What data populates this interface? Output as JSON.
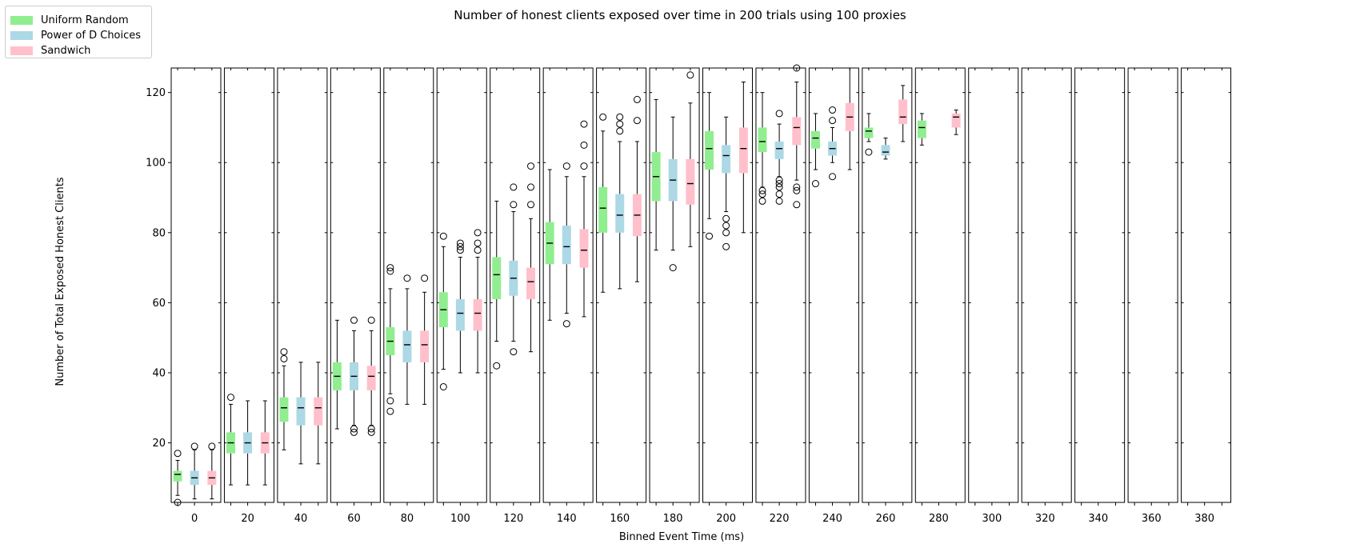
{
  "chart_data": {
    "type": "box",
    "title": "Number of honest clients exposed over time in 200 trials using 100 proxies",
    "xlabel": "Binned Event Time (ms)",
    "ylabel": "Number of Total Exposed Honest Clients",
    "ylim": [
      3,
      127
    ],
    "yticks": [
      20,
      40,
      60,
      80,
      100,
      120
    ],
    "legend_placement": "top-left",
    "categories": [
      "0",
      "20",
      "40",
      "60",
      "80",
      "100",
      "120",
      "140",
      "160",
      "180",
      "200",
      "220",
      "240",
      "260",
      "280",
      "300",
      "320",
      "340",
      "360",
      "380"
    ],
    "series": [
      {
        "name": "Uniform Random",
        "color": "#90ee90",
        "boxes": [
          {
            "whislo": 5,
            "q1": 9,
            "med": 11,
            "q3": 12,
            "whishi": 15,
            "fliers": [
              17,
              3
            ]
          },
          {
            "whislo": 8,
            "q1": 17,
            "med": 20,
            "q3": 23,
            "whishi": 31,
            "fliers": [
              33
            ]
          },
          {
            "whislo": 18,
            "q1": 26,
            "med": 30,
            "q3": 33,
            "whishi": 42,
            "fliers": [
              44,
              46
            ]
          },
          {
            "whislo": 24,
            "q1": 35,
            "med": 39,
            "q3": 43,
            "whishi": 55,
            "fliers": []
          },
          {
            "whislo": 34,
            "q1": 45,
            "med": 49,
            "q3": 53,
            "whishi": 64,
            "fliers": [
              69,
              70,
              32,
              29
            ]
          },
          {
            "whislo": 41,
            "q1": 53,
            "med": 58,
            "q3": 63,
            "whishi": 76,
            "fliers": [
              79,
              36
            ]
          },
          {
            "whislo": 49,
            "q1": 61,
            "med": 68,
            "q3": 73,
            "whishi": 89,
            "fliers": [
              42
            ]
          },
          {
            "whislo": 55,
            "q1": 71,
            "med": 77,
            "q3": 83,
            "whishi": 98,
            "fliers": []
          },
          {
            "whislo": 63,
            "q1": 80,
            "med": 87,
            "q3": 93,
            "whishi": 109,
            "fliers": [
              113
            ]
          },
          {
            "whislo": 75,
            "q1": 89,
            "med": 96,
            "q3": 103,
            "whishi": 118,
            "fliers": []
          },
          {
            "whislo": 84,
            "q1": 98,
            "med": 104,
            "q3": 109,
            "whishi": 120,
            "fliers": [
              79
            ]
          },
          {
            "whislo": 93,
            "q1": 103,
            "med": 106,
            "q3": 110,
            "whishi": 120,
            "fliers": [
              92,
              91,
              89
            ]
          },
          {
            "whislo": 98,
            "q1": 104,
            "med": 107,
            "q3": 109,
            "whishi": 114,
            "fliers": [
              94
            ]
          },
          {
            "whislo": 106,
            "q1": 107,
            "med": 109,
            "q3": 110,
            "whishi": 114,
            "fliers": [
              103
            ]
          },
          {
            "whislo": 105,
            "q1": 107,
            "med": 110,
            "q3": 112,
            "whishi": 114,
            "fliers": []
          },
          null,
          null,
          null,
          null,
          null
        ]
      },
      {
        "name": "Power of D Choices",
        "color": "#add8e6",
        "boxes": [
          {
            "whislo": 4,
            "q1": 8,
            "med": 10,
            "q3": 12,
            "whishi": 18,
            "fliers": [
              19
            ]
          },
          {
            "whislo": 8,
            "q1": 17,
            "med": 20,
            "q3": 23,
            "whishi": 32,
            "fliers": []
          },
          {
            "whislo": 14,
            "q1": 25,
            "med": 30,
            "q3": 33,
            "whishi": 43,
            "fliers": []
          },
          {
            "whislo": 25,
            "q1": 35,
            "med": 39,
            "q3": 43,
            "whishi": 52,
            "fliers": [
              55,
              24,
              23
            ]
          },
          {
            "whislo": 31,
            "q1": 43,
            "med": 48,
            "q3": 52,
            "whishi": 64,
            "fliers": [
              67
            ]
          },
          {
            "whislo": 40,
            "q1": 52,
            "med": 57,
            "q3": 61,
            "whishi": 73,
            "fliers": [
              77,
              76,
              75
            ]
          },
          {
            "whislo": 49,
            "q1": 62,
            "med": 67,
            "q3": 72,
            "whishi": 86,
            "fliers": [
              93,
              88,
              46
            ]
          },
          {
            "whislo": 57,
            "q1": 71,
            "med": 76,
            "q3": 82,
            "whishi": 96,
            "fliers": [
              99,
              54
            ]
          },
          {
            "whislo": 64,
            "q1": 80,
            "med": 85,
            "q3": 91,
            "whishi": 106,
            "fliers": [
              113,
              111,
              109
            ]
          },
          {
            "whislo": 75,
            "q1": 89,
            "med": 95,
            "q3": 101,
            "whishi": 113,
            "fliers": [
              70
            ]
          },
          {
            "whislo": 86,
            "q1": 97,
            "med": 102,
            "q3": 105,
            "whishi": 113,
            "fliers": [
              84,
              82,
              80,
              76
            ]
          },
          {
            "whislo": 96,
            "q1": 101,
            "med": 104,
            "q3": 106,
            "whishi": 111,
            "fliers": [
              114,
              95,
              94,
              93,
              91,
              89
            ]
          },
          {
            "whislo": 100,
            "q1": 102,
            "med": 104,
            "q3": 106,
            "whishi": 110,
            "fliers": [
              115,
              112,
              96
            ]
          },
          {
            "whislo": 101,
            "q1": 102,
            "med": 103,
            "q3": 105,
            "whishi": 107,
            "fliers": []
          },
          null,
          null,
          null,
          null,
          null,
          null
        ]
      },
      {
        "name": "Sandwich",
        "color": "#ffc0cb",
        "boxes": [
          {
            "whislo": 4,
            "q1": 8,
            "med": 10,
            "q3": 12,
            "whishi": 18,
            "fliers": [
              19
            ]
          },
          {
            "whislo": 8,
            "q1": 17,
            "med": 20,
            "q3": 23,
            "whishi": 32,
            "fliers": []
          },
          {
            "whislo": 14,
            "q1": 25,
            "med": 30,
            "q3": 33,
            "whishi": 43,
            "fliers": []
          },
          {
            "whislo": 25,
            "q1": 35,
            "med": 39,
            "q3": 42,
            "whishi": 52,
            "fliers": [
              55,
              24,
              23
            ]
          },
          {
            "whislo": 31,
            "q1": 43,
            "med": 48,
            "q3": 52,
            "whishi": 63,
            "fliers": [
              67
            ]
          },
          {
            "whislo": 40,
            "q1": 52,
            "med": 57,
            "q3": 61,
            "whishi": 73,
            "fliers": [
              80,
              77,
              75
            ]
          },
          {
            "whislo": 46,
            "q1": 61,
            "med": 66,
            "q3": 70,
            "whishi": 84,
            "fliers": [
              99,
              93,
              88
            ]
          },
          {
            "whislo": 56,
            "q1": 70,
            "med": 75,
            "q3": 81,
            "whishi": 96,
            "fliers": [
              111,
              105,
              99
            ]
          },
          {
            "whislo": 66,
            "q1": 79,
            "med": 85,
            "q3": 91,
            "whishi": 106,
            "fliers": [
              118,
              112
            ]
          },
          {
            "whislo": 76,
            "q1": 88,
            "med": 94,
            "q3": 101,
            "whishi": 117,
            "fliers": [
              125
            ]
          },
          {
            "whislo": 80,
            "q1": 97,
            "med": 104,
            "q3": 110,
            "whishi": 123,
            "fliers": []
          },
          {
            "whislo": 95,
            "q1": 105,
            "med": 110,
            "q3": 113,
            "whishi": 123,
            "fliers": [
              127,
              93,
              92,
              88
            ]
          },
          {
            "whislo": 98,
            "q1": 109,
            "med": 113,
            "q3": 117,
            "whishi": 127,
            "fliers": []
          },
          {
            "whislo": 106,
            "q1": 111,
            "med": 113,
            "q3": 118,
            "whishi": 122,
            "fliers": []
          },
          {
            "whislo": 108,
            "q1": 110,
            "med": 113,
            "q3": 114,
            "whishi": 115,
            "fliers": []
          },
          null,
          null,
          null,
          null,
          null
        ]
      }
    ]
  }
}
